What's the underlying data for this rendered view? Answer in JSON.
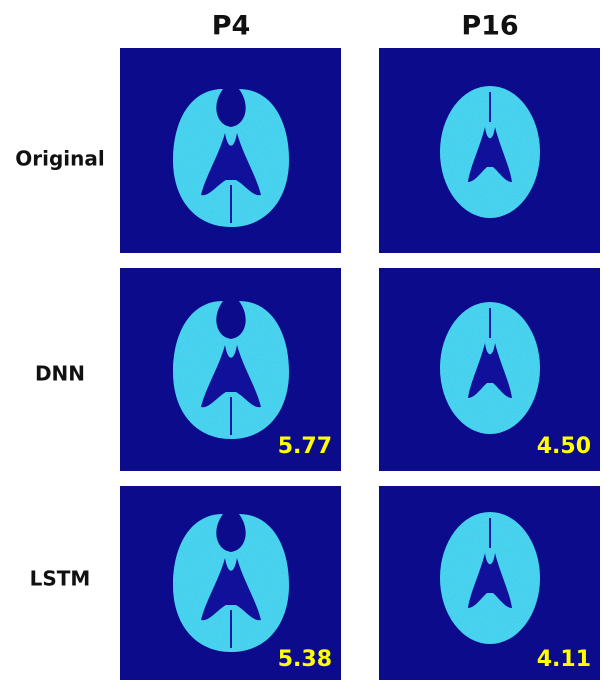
{
  "columns": [
    "P4",
    "P16"
  ],
  "rows": [
    {
      "label": "Original"
    },
    {
      "label": "DNN",
      "scores": [
        "5.77",
        "4.50"
      ]
    },
    {
      "label": "LSTM",
      "scores": [
        "5.38",
        "4.11"
      ]
    }
  ]
}
